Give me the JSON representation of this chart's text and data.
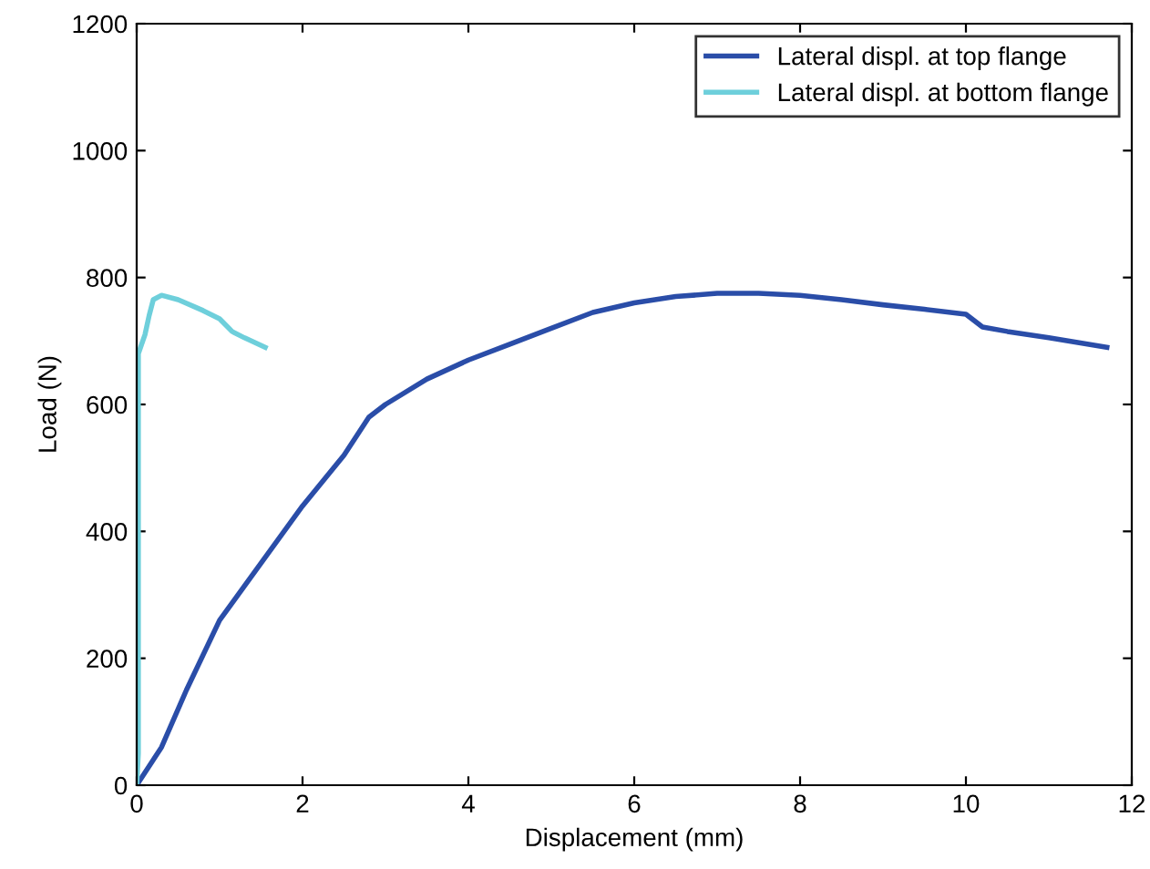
{
  "chart_data": {
    "type": "line",
    "xlabel": "Displacement (mm)",
    "ylabel": "Load (N)",
    "xlim": [
      0,
      12
    ],
    "ylim": [
      0,
      1200
    ],
    "xticks": [
      0,
      2,
      4,
      6,
      8,
      10,
      12
    ],
    "yticks": [
      0,
      200,
      400,
      600,
      800,
      1000,
      1200
    ],
    "grid": false,
    "legend": "top right",
    "marker": "none",
    "line_style": "solid",
    "series": [
      {
        "name": "Lateral displ. at top flange",
        "color": "#2a4da8",
        "x": [
          0,
          0.3,
          0.6,
          1,
          1.5,
          2,
          2.5,
          2.8,
          3,
          3.5,
          4,
          4.5,
          5,
          5.5,
          6,
          6.5,
          7,
          7.5,
          8,
          8.5,
          9,
          9.5,
          10,
          10.2,
          10.5,
          11,
          11.7
        ],
        "values": [
          0,
          60,
          150,
          260,
          350,
          440,
          520,
          580,
          600,
          640,
          670,
          695,
          720,
          745,
          760,
          770,
          775,
          775,
          772,
          765,
          757,
          750,
          742,
          722,
          715,
          705,
          690
        ]
      },
      {
        "name": "Lateral displ. at bottom flange",
        "color": "#6ecfdb",
        "x": [
          0,
          0.02,
          0.02,
          0.1,
          0.15,
          0.2,
          0.3,
          0.5,
          0.8,
          1.0,
          1.15,
          1.3,
          1.55
        ],
        "values": [
          0,
          50,
          680,
          710,
          740,
          765,
          772,
          765,
          748,
          735,
          715,
          705,
          690
        ]
      }
    ]
  }
}
